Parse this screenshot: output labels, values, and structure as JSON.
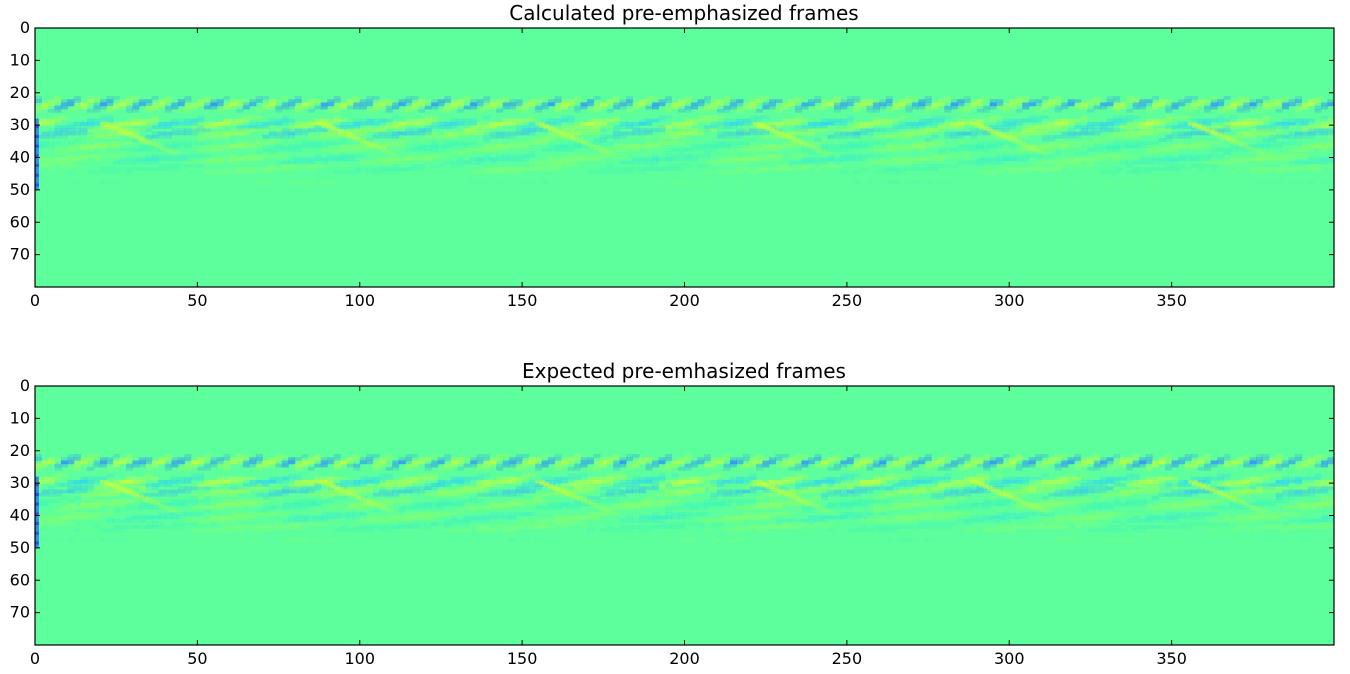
{
  "chart_data": [
    {
      "type": "heatmap",
      "title": "Calculated pre-emphasized frames",
      "xlabel": "",
      "ylabel": "",
      "xlim": [
        0,
        400
      ],
      "ylim": [
        80,
        0
      ],
      "xticks": [
        "0",
        "50",
        "100",
        "150",
        "200",
        "250",
        "300",
        "350"
      ],
      "yticks": [
        "0",
        "10",
        "20",
        "30",
        "40",
        "50",
        "60",
        "70"
      ],
      "colormap": "jet",
      "background_color": "#5cff9c",
      "rows": 80,
      "cols": 400,
      "grid": false,
      "legend": "none"
    },
    {
      "type": "heatmap",
      "title": "Expected pre-emhasized frames",
      "xlabel": "",
      "ylabel": "",
      "xlim": [
        0,
        400
      ],
      "ylim": [
        80,
        0
      ],
      "xticks": [
        "0",
        "50",
        "100",
        "150",
        "200",
        "250",
        "300",
        "350"
      ],
      "yticks": [
        "0",
        "10",
        "20",
        "30",
        "40",
        "50",
        "60",
        "70"
      ],
      "colormap": "jet",
      "background_color": "#5cff9c",
      "rows": 80,
      "cols": 400,
      "grid": false,
      "legend": "none"
    }
  ]
}
